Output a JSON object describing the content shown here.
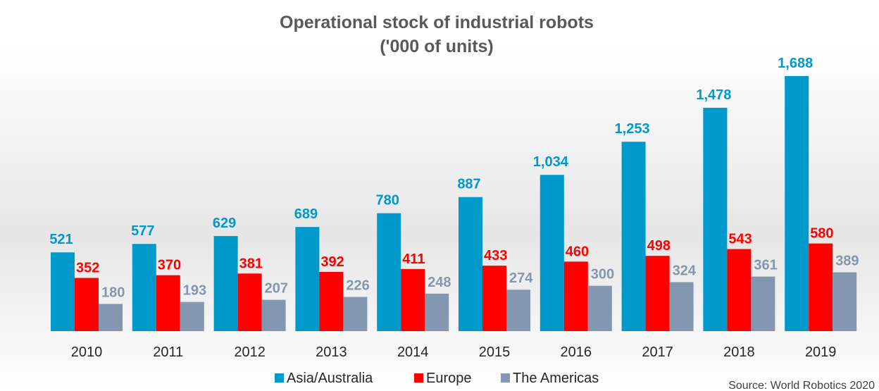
{
  "chart_data": {
    "type": "bar",
    "title": "Operational stock of industrial robots",
    "subtitle": "('000 of units)",
    "xlabel": "",
    "ylabel": "",
    "ylim": [
      0,
      1800
    ],
    "grid": false,
    "legend_position": "bottom",
    "categories": [
      "2010",
      "2011",
      "2012",
      "2013",
      "2014",
      "2015",
      "2016",
      "2017",
      "2018",
      "2019"
    ],
    "series": [
      {
        "name": "Asia/Australia",
        "color": "#0099CC",
        "values": [
          521,
          577,
          629,
          689,
          780,
          887,
          1034,
          1253,
          1478,
          1688
        ],
        "labels": [
          "521",
          "577",
          "629",
          "689",
          "780",
          "887",
          "1,034",
          "1,253",
          "1,478",
          "1,688"
        ]
      },
      {
        "name": "Europe",
        "color": "#FF0000",
        "values": [
          352,
          370,
          381,
          392,
          411,
          433,
          460,
          498,
          543,
          580
        ],
        "labels": [
          "352",
          "370",
          "381",
          "392",
          "411",
          "433",
          "460",
          "498",
          "543",
          "580"
        ]
      },
      {
        "name": "The Americas",
        "color": "#8497B0",
        "values": [
          180,
          193,
          207,
          226,
          248,
          274,
          300,
          324,
          361,
          389
        ],
        "labels": [
          "180",
          "193",
          "207",
          "226",
          "248",
          "274",
          "300",
          "324",
          "361",
          "389"
        ]
      }
    ],
    "label_colors": [
      "#0099CC",
      "#FF0000",
      "#8497B0"
    ],
    "source": "Source: World Robotics 2020"
  }
}
